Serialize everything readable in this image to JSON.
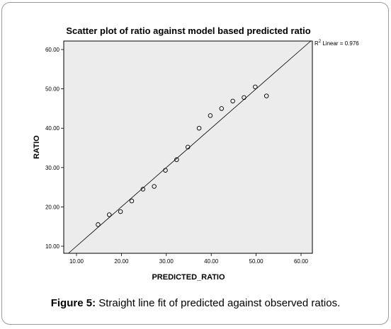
{
  "chart_data": {
    "type": "scatter",
    "title": "Scatter plot of ratio against model based predicted ratio",
    "xlabel": "PREDICTED_RATIO",
    "ylabel": "RATIO",
    "xlim": [
      10,
      60
    ],
    "ylim": [
      10,
      60
    ],
    "x_ticks": [
      "10.00",
      "20.00",
      "30.00",
      "40.00",
      "50.00",
      "60.00"
    ],
    "y_ticks": [
      "10.00",
      "20.00",
      "30.00",
      "40.00",
      "50.00",
      "60.00"
    ],
    "grid": false,
    "points": [
      {
        "x": 14.8,
        "y": 15.5
      },
      {
        "x": 17.3,
        "y": 18.0
      },
      {
        "x": 19.8,
        "y": 18.8
      },
      {
        "x": 22.3,
        "y": 21.5
      },
      {
        "x": 24.8,
        "y": 24.5
      },
      {
        "x": 27.3,
        "y": 25.2
      },
      {
        "x": 29.8,
        "y": 29.3
      },
      {
        "x": 32.3,
        "y": 32.0
      },
      {
        "x": 34.8,
        "y": 35.2
      },
      {
        "x": 37.3,
        "y": 40.0
      },
      {
        "x": 39.8,
        "y": 43.2
      },
      {
        "x": 42.3,
        "y": 45.0
      },
      {
        "x": 44.8,
        "y": 46.9
      },
      {
        "x": 47.3,
        "y": 47.8
      },
      {
        "x": 49.8,
        "y": 50.5
      },
      {
        "x": 52.3,
        "y": 48.2
      }
    ],
    "fit_line": {
      "type": "linear",
      "from": [
        10,
        10
      ],
      "to": [
        60,
        60
      ]
    },
    "annotation": {
      "prefix": "R",
      "superscript": "2",
      "text": " Linear = 0.976"
    },
    "plot_background": "#ececec",
    "marker_color": "#000000"
  },
  "caption": {
    "label": "Figure 5:",
    "text": " Straight line fit of predicted against observed ratios."
  }
}
